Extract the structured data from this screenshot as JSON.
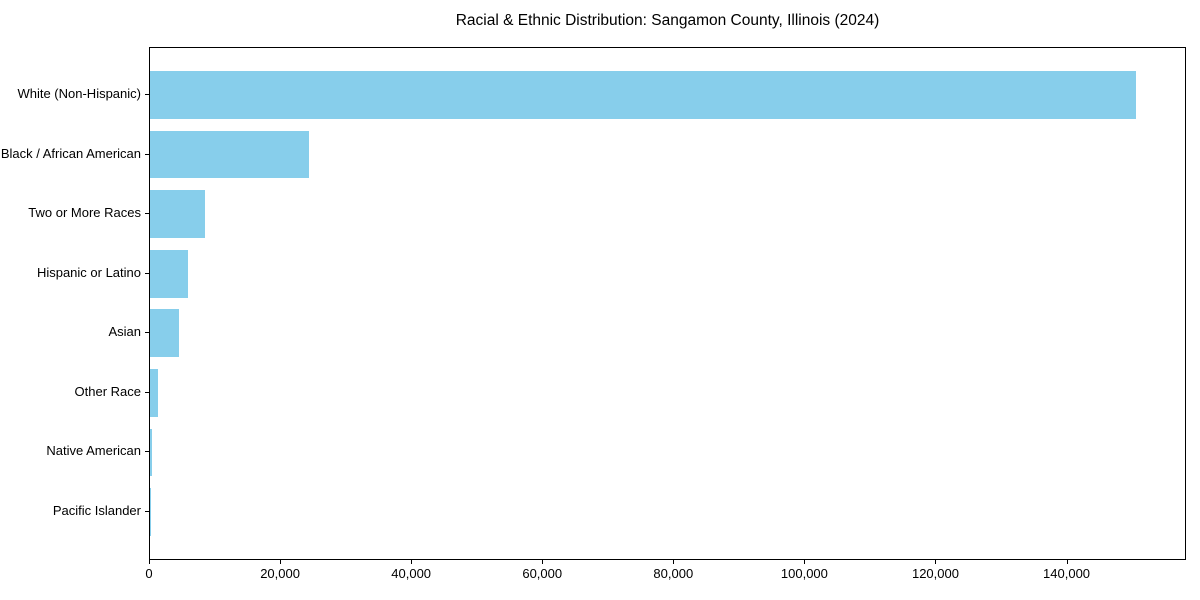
{
  "chart_data": {
    "type": "bar",
    "orientation": "horizontal",
    "title": "Racial & Ethnic Distribution: Sangamon County, Illinois (2024)",
    "categories": [
      "White (Non-Hispanic)",
      "Black / African American",
      "Two or More Races",
      "Hispanic or Latino",
      "Asian",
      "Other Race",
      "Native American",
      "Pacific Islander"
    ],
    "values": [
      150400,
      24200,
      8400,
      5800,
      4400,
      1200,
      300,
      80
    ],
    "xlabel": "",
    "ylabel": "",
    "xlim": [
      0,
      157920
    ],
    "x_ticks": [
      {
        "value": 0,
        "label": "0"
      },
      {
        "value": 20000,
        "label": "20,000"
      },
      {
        "value": 40000,
        "label": "40,000"
      },
      {
        "value": 60000,
        "label": "60,000"
      },
      {
        "value": 80000,
        "label": "80,000"
      },
      {
        "value": 100000,
        "label": "100,000"
      },
      {
        "value": 120000,
        "label": "120,000"
      },
      {
        "value": 140000,
        "label": "140,000"
      }
    ],
    "bar_color": "#87CEEB",
    "spine_color": "#000000",
    "text_color": "#000000",
    "bar_height_frac": 0.8,
    "grid": false,
    "legend": false
  }
}
